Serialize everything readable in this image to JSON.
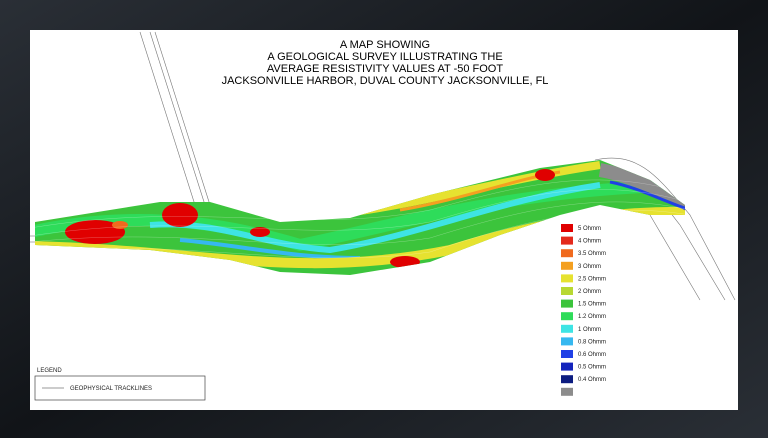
{
  "title_lines": [
    "A MAP SHOWING",
    "A GEOLOGICAL SURVEY ILLUSTRATING THE",
    "AVERAGE RESISTIVITY VALUES AT -50 FOOT",
    "JACKSONVILLE HARBOR, DUVAL COUNTY JACKSONVILLE, FL"
  ],
  "resistivity_legend": [
    {
      "label": "5 Ohmm",
      "color": "#e00000"
    },
    {
      "label": "4 Ohmm",
      "color": "#e42a1c"
    },
    {
      "label": "3.5 Ohmm",
      "color": "#f06a1e"
    },
    {
      "label": "3 Ohmm",
      "color": "#f4a020"
    },
    {
      "label": "2.5 Ohmm",
      "color": "#e6e230"
    },
    {
      "label": "2 Ohmm",
      "color": "#b8d832"
    },
    {
      "label": "1.5 Ohmm",
      "color": "#3cc43c"
    },
    {
      "label": "1.2 Ohmm",
      "color": "#2edc5a"
    },
    {
      "label": "1 Ohmm",
      "color": "#3ee4e4"
    },
    {
      "label": "0.8 Ohmm",
      "color": "#36b8f0"
    },
    {
      "label": "0.6 Ohmm",
      "color": "#2040e6"
    },
    {
      "label": "0.5 Ohmm",
      "color": "#1424bc"
    },
    {
      "label": "0.4 Ohmm",
      "color": "#0c1c80"
    },
    {
      "color": "#8c8c8c"
    }
  ],
  "legend": {
    "title": "LEGEND",
    "item": "GEOPHYSICAL TRACKLINES"
  }
}
